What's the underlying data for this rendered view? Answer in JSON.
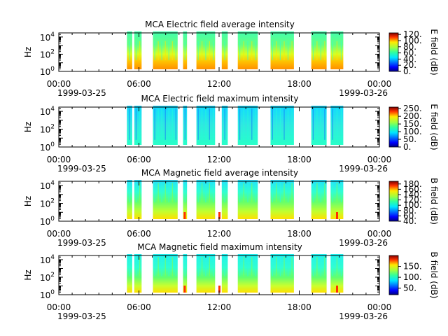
{
  "figure": {
    "x_tick_labels": [
      "00:00",
      "06:00",
      "12:00",
      "18:00",
      "00:00"
    ],
    "x_tick_hours": [
      0,
      6,
      12,
      18,
      24
    ],
    "start_date_label": "1999-03-25",
    "end_date_label": "1999-03-26"
  },
  "chart_data": [
    {
      "type": "heatmap",
      "title": "MCA  Electric field average intensity",
      "ylabel": "Hz",
      "y_scale": "log",
      "ylim": [
        1,
        30000
      ],
      "y_ticks": [
        1,
        100,
        10000
      ],
      "xlim_hours": [
        0,
        24
      ],
      "colorbar": {
        "label": "E field (dB)",
        "range": [
          0,
          125
        ],
        "ticks": [
          0,
          20,
          40,
          60,
          80,
          100,
          120
        ],
        "tick_labels": [
          "0.",
          "20.",
          "40.",
          "60.",
          "80.",
          "100.",
          "120."
        ]
      },
      "data_intervals_hours": [
        [
          5.1,
          5.5
        ],
        [
          5.65,
          6.2
        ],
        [
          7.05,
          8.9
        ],
        [
          9.3,
          9.6
        ],
        [
          10.3,
          11.7
        ],
        [
          12.2,
          12.65
        ],
        [
          13.4,
          14.9
        ],
        [
          15.85,
          17.6
        ],
        [
          18.9,
          20.05
        ],
        [
          20.35,
          21.3
        ]
      ],
      "intensity_profile": "high (yellow-red, ~80-110 dB) below ~100 Hz, mid (~50-70 dB) at 1-10 kHz"
    },
    {
      "type": "heatmap",
      "title": "MCA  Electric field maximum intensity",
      "ylabel": "Hz",
      "y_scale": "log",
      "ylim": [
        1,
        30000
      ],
      "y_ticks": [
        1,
        100,
        10000
      ],
      "xlim_hours": [
        0,
        24
      ],
      "colorbar": {
        "label": "E field (dB)",
        "range": [
          0,
          260
        ],
        "ticks": [
          0,
          50,
          100,
          150,
          200,
          250
        ],
        "tick_labels": [
          "0.",
          "50.",
          "100.",
          "150.",
          "200.",
          "250."
        ]
      },
      "data_intervals_hours": [
        [
          5.1,
          5.5
        ],
        [
          5.65,
          6.2
        ],
        [
          7.05,
          8.9
        ],
        [
          9.3,
          9.6
        ],
        [
          10.3,
          11.7
        ],
        [
          12.2,
          12.65
        ],
        [
          13.4,
          14.9
        ],
        [
          15.85,
          17.6
        ],
        [
          18.9,
          20.05
        ],
        [
          20.35,
          21.3
        ]
      ],
      "intensity_profile": "mostly cyan (~120 dB) with blue patches (~60-80 dB)"
    },
    {
      "type": "heatmap",
      "title": "MCA  Magnetic field average intensity",
      "ylabel": "Hz",
      "y_scale": "log",
      "ylim": [
        1,
        30000
      ],
      "y_ticks": [
        1,
        100,
        10000
      ],
      "xlim_hours": [
        0,
        24
      ],
      "colorbar": {
        "label": "B field (dB)",
        "range": [
          40,
          190
        ],
        "ticks": [
          40,
          60,
          80,
          100,
          120,
          140,
          160,
          180
        ],
        "tick_labels": [
          "40.",
          "60.",
          "80.",
          "100.",
          "120.",
          "140.",
          "160.",
          "180."
        ]
      },
      "data_intervals_hours": [
        [
          5.1,
          5.5
        ],
        [
          5.65,
          6.2
        ],
        [
          7.05,
          8.9
        ],
        [
          9.3,
          9.6
        ],
        [
          10.3,
          11.7
        ],
        [
          12.2,
          12.65
        ],
        [
          13.4,
          14.9
        ],
        [
          15.85,
          17.6
        ],
        [
          18.9,
          20.05
        ],
        [
          20.35,
          21.3
        ]
      ],
      "intensity_profile": "cyan (~100 dB) above 1 kHz, green (~110-120 dB) mid, yellow (~150 dB) at lowest frequencies"
    },
    {
      "type": "heatmap",
      "title": "MCA  Magnetic field maximum intensity",
      "ylabel": "Hz",
      "y_scale": "log",
      "ylim": [
        1,
        30000
      ],
      "y_ticks": [
        1,
        100,
        10000
      ],
      "xlim_hours": [
        0,
        24
      ],
      "colorbar": {
        "label": "B field (dB)",
        "range": [
          20,
          200
        ],
        "ticks": [
          50,
          100,
          150
        ],
        "tick_labels": [
          "50.",
          "100.",
          "150."
        ]
      },
      "data_intervals_hours": [
        [
          5.1,
          5.5
        ],
        [
          5.65,
          6.2
        ],
        [
          7.05,
          8.9
        ],
        [
          9.3,
          9.6
        ],
        [
          10.3,
          11.7
        ],
        [
          12.2,
          12.65
        ],
        [
          13.4,
          14.9
        ],
        [
          15.85,
          17.6
        ],
        [
          18.9,
          20.05
        ],
        [
          20.35,
          21.3
        ]
      ],
      "intensity_profile": "cyan (~100 dB) above 1 kHz, green mid, yellow (~160 dB) at lowest frequencies"
    }
  ]
}
